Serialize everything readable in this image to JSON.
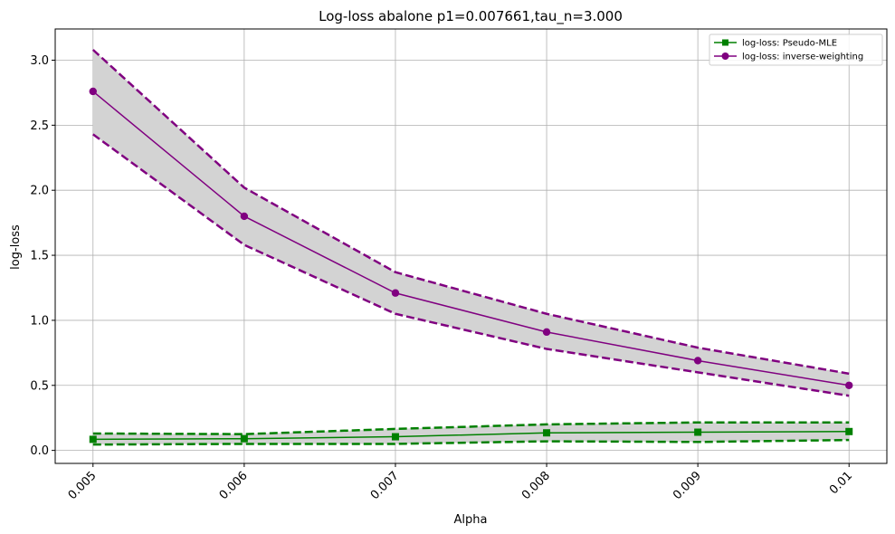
{
  "chart_data": {
    "type": "line",
    "title": "Log-loss abalone p1=0.007661,tau_n=3.000",
    "xlabel": "Alpha",
    "ylabel": "log-loss",
    "x": [
      0.005,
      0.006,
      0.007,
      0.008,
      0.009,
      0.01
    ],
    "x_tick_labels": [
      "0.005",
      "0.006",
      "0.007",
      "0.008",
      "0.009",
      "0.01"
    ],
    "y_ticks": [
      0.0,
      0.5,
      1.0,
      1.5,
      2.0,
      2.5,
      3.0
    ],
    "y_tick_labels": [
      "0.0",
      "0.5",
      "1.0",
      "1.5",
      "2.0",
      "2.5",
      "3.0"
    ],
    "xlim": [
      0.00475,
      0.01025
    ],
    "ylim": [
      -0.1,
      3.24
    ],
    "grid": true,
    "legend_position": "top-right",
    "series": [
      {
        "name": "log-loss: Pseudo-MLE",
        "color": "#008000",
        "marker": "square",
        "values": [
          0.085,
          0.09,
          0.105,
          0.135,
          0.14,
          0.145
        ],
        "lower": [
          0.045,
          0.05,
          0.05,
          0.07,
          0.065,
          0.08
        ],
        "upper": [
          0.13,
          0.125,
          0.165,
          0.2,
          0.215,
          0.215
        ]
      },
      {
        "name": "log-loss: inverse-weighting",
        "color": "#800080",
        "marker": "circle",
        "values": [
          2.76,
          1.8,
          1.21,
          0.91,
          0.69,
          0.5
        ],
        "lower": [
          2.43,
          1.58,
          1.05,
          0.78,
          0.6,
          0.42
        ],
        "upper": [
          3.08,
          2.02,
          1.37,
          1.05,
          0.79,
          0.59
        ]
      }
    ],
    "band_color": "#d3d3d3"
  }
}
